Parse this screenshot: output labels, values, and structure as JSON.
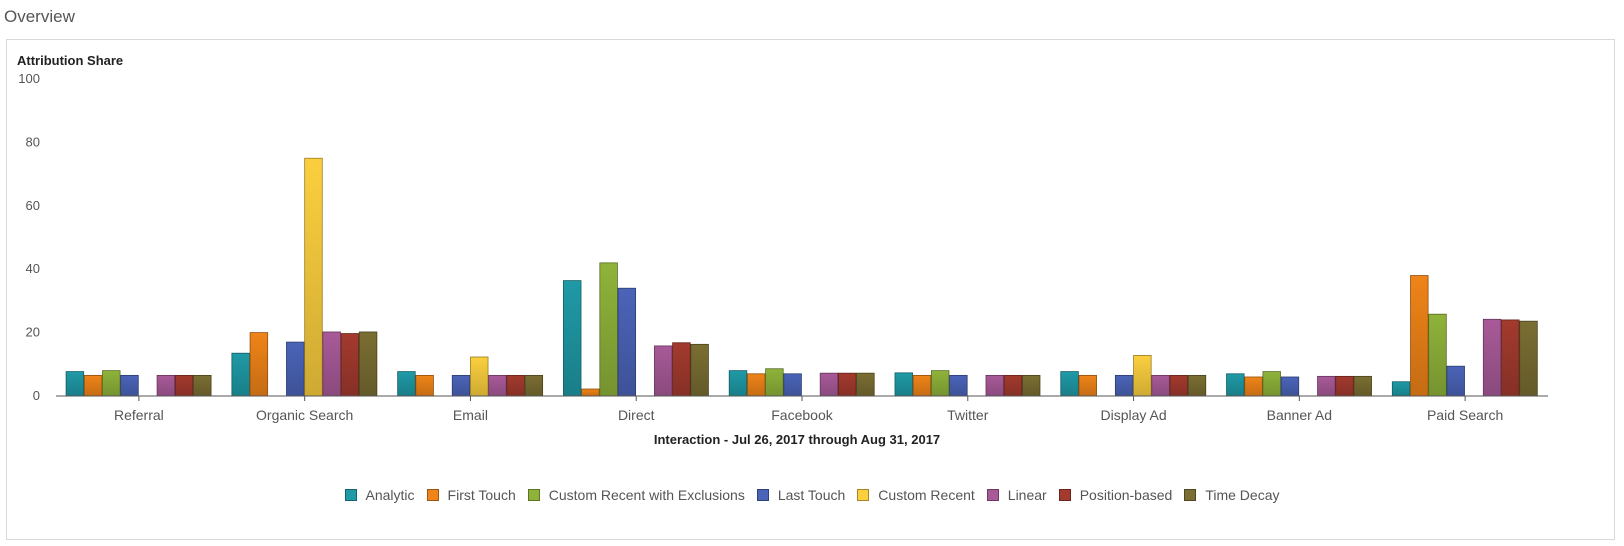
{
  "panel": {
    "title": "Overview"
  },
  "chart_data": {
    "type": "bar",
    "title": "",
    "ylabel": "Attribution Share",
    "xlabel": "Interaction - Jul 26, 2017 through Aug 31, 2017",
    "ylim": [
      0,
      100
    ],
    "yticks": [
      0,
      20,
      40,
      60,
      80,
      100
    ],
    "grid": false,
    "legend_position": "bottom-center",
    "categories": [
      "Referral",
      "Organic Search",
      "Email",
      "Direct",
      "Facebook",
      "Twitter",
      "Display Ad",
      "Banner Ad",
      "Paid Search"
    ],
    "series": [
      {
        "name": "Analytic",
        "color": "#1f9aa6",
        "values": [
          7.7,
          13.5,
          7.7,
          36.4,
          8.0,
          7.3,
          7.7,
          7.0,
          4.5
        ]
      },
      {
        "name": "First Touch",
        "color": "#ef8418",
        "values": [
          6.5,
          20.0,
          6.5,
          2.2,
          7.0,
          6.5,
          6.5,
          6.0,
          38.0
        ]
      },
      {
        "name": "Custom Recent with Exclusions",
        "color": "#8fb33a",
        "values": [
          8.0,
          0,
          0,
          42.0,
          8.6,
          8.0,
          0,
          7.7,
          25.8
        ]
      },
      {
        "name": "Last Touch",
        "color": "#4b64b8",
        "values": [
          6.5,
          17.0,
          6.5,
          34.0,
          7.0,
          6.5,
          6.5,
          6.0,
          9.4
        ]
      },
      {
        "name": "Custom Recent",
        "color": "#fbcf3e",
        "values": [
          0,
          75.0,
          12.3,
          0,
          0,
          0,
          12.8,
          0,
          0
        ]
      },
      {
        "name": "Linear",
        "color": "#a85a98",
        "values": [
          6.5,
          20.2,
          6.5,
          15.8,
          7.2,
          6.5,
          6.5,
          6.2,
          24.2
        ]
      },
      {
        "name": "Position-based",
        "color": "#a33a2e",
        "values": [
          6.5,
          19.7,
          6.5,
          16.8,
          7.2,
          6.5,
          6.5,
          6.2,
          24.0
        ]
      },
      {
        "name": "Time Decay",
        "color": "#7a6e32",
        "values": [
          6.5,
          20.2,
          6.5,
          16.3,
          7.2,
          6.5,
          6.5,
          6.2,
          23.6
        ]
      }
    ]
  }
}
